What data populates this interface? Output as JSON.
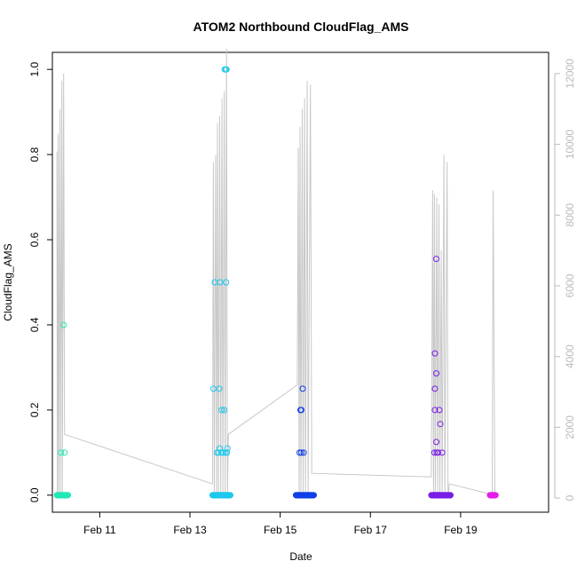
{
  "chart_data": {
    "type": "scatter",
    "title": "ATOM2 Northbound CloudFlag_AMS",
    "xlabel": "Date",
    "ylabel": "CloudFlag_AMS",
    "x_unit": "day (February)",
    "xlim": [
      9.95,
      20.95
    ],
    "ylim": [
      -0.04,
      1.04
    ],
    "x_ticks": [
      {
        "value": 11,
        "label": "Feb 11"
      },
      {
        "value": 13,
        "label": "Feb 13"
      },
      {
        "value": 15,
        "label": "Feb 15"
      },
      {
        "value": 17,
        "label": "Feb 17"
      },
      {
        "value": 19,
        "label": "Feb 19"
      }
    ],
    "y_ticks": [
      {
        "value": 0.0,
        "label": "0.0"
      },
      {
        "value": 0.2,
        "label": "0.2"
      },
      {
        "value": 0.4,
        "label": "0.4"
      },
      {
        "value": 0.6,
        "label": "0.6"
      },
      {
        "value": 0.8,
        "label": "0.8"
      },
      {
        "value": 1.0,
        "label": "1.0"
      }
    ],
    "y2lim": [
      -400,
      12600
    ],
    "y2_ticks": [
      {
        "value": 0,
        "label": "0"
      },
      {
        "value": 2000,
        "label": "2000"
      },
      {
        "value": 4000,
        "label": "4000"
      },
      {
        "value": 6000,
        "label": "6000"
      },
      {
        "value": 8000,
        "label": "8000"
      },
      {
        "value": 10000,
        "label": "10000"
      },
      {
        "value": 12000,
        "label": "12000"
      }
    ],
    "line_color": "#c8c8c8",
    "groups": [
      {
        "color": "#22e8b4",
        "points": [
          [
            10.2,
            0.4
          ],
          [
            10.14,
            0.1
          ],
          [
            10.22,
            0.1
          ]
        ],
        "zero_range": [
          10.05,
          10.3
        ]
      },
      {
        "color": "#1ec8ec",
        "points": [
          [
            13.55,
            0.5
          ],
          [
            13.67,
            0.5
          ],
          [
            13.8,
            0.5
          ],
          [
            13.52,
            0.25
          ],
          [
            13.65,
            0.25
          ],
          [
            13.7,
            0.2
          ],
          [
            13.76,
            0.2
          ],
          [
            13.66,
            0.11
          ],
          [
            13.83,
            0.11
          ],
          [
            13.6,
            0.1
          ],
          [
            13.63,
            0.1
          ],
          [
            13.69,
            0.1
          ],
          [
            13.74,
            0.1
          ],
          [
            13.79,
            0.1
          ],
          [
            13.82,
            0.1
          ],
          [
            13.77,
            1.0
          ],
          [
            13.79,
            1.0
          ],
          [
            13.81,
            1.0
          ]
        ],
        "zero_range": [
          13.5,
          13.9
        ]
      },
      {
        "color": "#1040e6",
        "points": [
          [
            15.5,
            0.25
          ],
          [
            15.45,
            0.2
          ],
          [
            15.47,
            0.2
          ],
          [
            15.43,
            0.1
          ],
          [
            15.47,
            0.1
          ],
          [
            15.52,
            0.1
          ]
        ],
        "zero_range": [
          15.35,
          15.75
        ]
      },
      {
        "color": "#7a1ee6",
        "points": [
          [
            18.46,
            0.555
          ],
          [
            18.43,
            0.333
          ],
          [
            18.46,
            0.286
          ],
          [
            18.43,
            0.25
          ],
          [
            18.43,
            0.2
          ],
          [
            18.53,
            0.2
          ],
          [
            18.55,
            0.167
          ],
          [
            18.46,
            0.125
          ],
          [
            18.42,
            0.1
          ],
          [
            18.47,
            0.1
          ],
          [
            18.5,
            0.1
          ],
          [
            18.59,
            0.1
          ]
        ],
        "zero_range": [
          18.35,
          18.78
        ]
      },
      {
        "color": "#e61ee6",
        "points": [],
        "zero_range": [
          19.65,
          19.78
        ]
      }
    ],
    "altitude_line": [
      [
        10.05,
        9800
      ],
      [
        10.06,
        0
      ],
      [
        10.08,
        10300
      ],
      [
        10.09,
        0
      ],
      [
        10.12,
        11000
      ],
      [
        10.13,
        0
      ],
      [
        10.16,
        11800
      ],
      [
        10.17,
        0
      ],
      [
        10.2,
        12000
      ],
      [
        10.22,
        1800
      ],
      [
        13.5,
        400
      ],
      [
        13.52,
        9500
      ],
      [
        13.54,
        0
      ],
      [
        13.57,
        9700
      ],
      [
        13.59,
        0
      ],
      [
        13.61,
        10600
      ],
      [
        13.63,
        0
      ],
      [
        13.66,
        10800
      ],
      [
        13.68,
        0
      ],
      [
        13.71,
        11300
      ],
      [
        13.73,
        0
      ],
      [
        13.76,
        11500
      ],
      [
        13.78,
        0
      ],
      [
        13.81,
        12700
      ],
      [
        13.83,
        0
      ],
      [
        13.85,
        1800
      ],
      [
        15.38,
        3200
      ],
      [
        15.4,
        9900
      ],
      [
        15.42,
        0
      ],
      [
        15.44,
        10500
      ],
      [
        15.46,
        0
      ],
      [
        15.49,
        11000
      ],
      [
        15.51,
        0
      ],
      [
        15.54,
        11300
      ],
      [
        15.56,
        0
      ],
      [
        15.6,
        11800
      ],
      [
        15.62,
        0
      ],
      [
        15.67,
        11700
      ],
      [
        15.7,
        700
      ],
      [
        18.35,
        600
      ],
      [
        18.38,
        8700
      ],
      [
        18.4,
        0
      ],
      [
        18.42,
        8600
      ],
      [
        18.44,
        0
      ],
      [
        18.47,
        8500
      ],
      [
        18.49,
        0
      ],
      [
        18.52,
        8300
      ],
      [
        18.54,
        0
      ],
      [
        18.57,
        7000
      ],
      [
        18.59,
        0
      ],
      [
        18.63,
        9700
      ],
      [
        18.65,
        0
      ],
      [
        18.7,
        9500
      ],
      [
        18.72,
        0
      ],
      [
        18.75,
        400
      ],
      [
        19.7,
        100
      ],
      [
        19.72,
        8700
      ],
      [
        19.76,
        0
      ],
      [
        19.78,
        0
      ]
    ]
  }
}
